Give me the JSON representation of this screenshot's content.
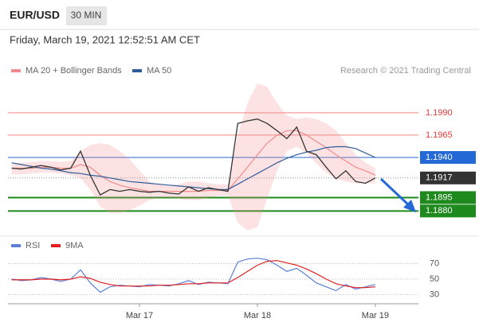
{
  "header": {
    "symbol": "EUR/USD",
    "timeframe": "30 MIN",
    "timestamp": "Friday, March 19, 2021 12:52:51 AM CET",
    "credit": "Research © 2021 Trading Central"
  },
  "chart_data": [
    {
      "type": "line",
      "ylim": [
        1.1858,
        1.203
      ],
      "price": {
        "color": "#333333",
        "values": [
          1.1928,
          1.1927,
          1.1929,
          1.1931,
          1.1929,
          1.1926,
          1.1928,
          1.1947,
          1.192,
          1.1898,
          1.1904,
          1.1902,
          1.1904,
          1.1902,
          1.1901,
          1.1902,
          1.19,
          1.1899,
          1.1907,
          1.1902,
          1.1906,
          1.1904,
          1.1902,
          1.1978,
          1.1981,
          1.1983,
          1.1978,
          1.197,
          1.1961,
          1.1974,
          1.1947,
          1.1943,
          1.1929,
          1.1916,
          1.1925,
          1.1913,
          1.1911,
          1.1917
        ]
      },
      "series": [
        {
          "name": "MA 20 + Bollinger Bands",
          "color": "#f28b8b",
          "values": [
            1.1928,
            1.1928,
            1.1928,
            1.1929,
            1.1929,
            1.1928,
            1.1928,
            1.1932,
            1.1929,
            1.192,
            1.1913,
            1.1909,
            1.1906,
            1.1904,
            1.1902,
            1.1902,
            1.1902,
            1.1902,
            1.1902,
            1.1902,
            1.1903,
            1.1903,
            1.1903,
            1.1916,
            1.1929,
            1.1943,
            1.1956,
            1.1965,
            1.197,
            1.197,
            1.1965,
            1.1958,
            1.1951,
            1.1943,
            1.1936,
            1.1929,
            1.1925,
            1.192
          ],
          "upper": [
            1.1934,
            1.1934,
            1.1935,
            1.1936,
            1.1936,
            1.1935,
            1.1936,
            1.1947,
            1.1954,
            1.1956,
            1.1954,
            1.1947,
            1.1938,
            1.1925,
            1.1913,
            1.191,
            1.1908,
            1.191,
            1.1913,
            1.1913,
            1.1911,
            1.191,
            1.191,
            1.1965,
            1.2001,
            1.2023,
            1.2019,
            1.2001,
            1.1987,
            1.1983,
            1.1985,
            1.1983,
            1.1978,
            1.197,
            1.1956,
            1.1943,
            1.1934,
            1.1928
          ],
          "lower": [
            1.1921,
            1.1921,
            1.1922,
            1.1923,
            1.1923,
            1.1922,
            1.192,
            1.1917,
            1.1904,
            1.1885,
            1.1878,
            1.1878,
            1.1881,
            1.1886,
            1.1892,
            1.1895,
            1.1895,
            1.1894,
            1.1892,
            1.1892,
            1.1895,
            1.1897,
            1.1897,
            1.1867,
            1.1858,
            1.1862,
            1.1894,
            1.1925,
            1.1947,
            1.1952,
            1.1945,
            1.1933,
            1.1923,
            1.1916,
            1.1913,
            1.1911,
            1.1911,
            1.1911
          ]
        },
        {
          "name": "MA 50",
          "color": "#2f5d9a",
          "values": [
            1.1934,
            1.1932,
            1.193,
            1.1928,
            1.1927,
            1.1925,
            1.1923,
            1.1922,
            1.192,
            1.1919,
            1.1917,
            1.1915,
            1.1913,
            1.1912,
            1.1911,
            1.191,
            1.1909,
            1.1908,
            1.1907,
            1.1906,
            1.1905,
            1.1904,
            1.1904,
            1.191,
            1.1916,
            1.1922,
            1.1928,
            1.1934,
            1.1939,
            1.1943,
            1.1946,
            1.1948,
            1.1951,
            1.1952,
            1.1952,
            1.195,
            1.1945,
            1.194
          ]
        }
      ],
      "levels": [
        {
          "value": 1.199,
          "label": "1.1990",
          "color": "#e53935",
          "boxed": false
        },
        {
          "value": 1.1965,
          "label": "1.1965",
          "color": "#e53935",
          "boxed": false
        },
        {
          "value": 1.194,
          "label": "1.1940",
          "color": "#2469d6",
          "boxed": true
        },
        {
          "value": 1.1917,
          "label": "1.1917",
          "color": "#333333",
          "boxed": true
        },
        {
          "value": 1.1895,
          "label": "1.1895",
          "color": "#1e8a1e",
          "boxed": true
        },
        {
          "value": 1.188,
          "label": "1.1880",
          "color": "#1e8a1e",
          "boxed": true
        }
      ]
    },
    {
      "type": "line",
      "ylim": [
        16,
        86
      ],
      "yticks": [
        70,
        50,
        30
      ],
      "grid": true,
      "categories": [
        null,
        null,
        null,
        null,
        null,
        null,
        null,
        null,
        null,
        null,
        null,
        null,
        null,
        "Mar 17",
        null,
        null,
        null,
        null,
        null,
        null,
        null,
        null,
        null,
        null,
        null,
        "Mar 18",
        null,
        null,
        null,
        null,
        null,
        null,
        null,
        null,
        null,
        null,
        null,
        "Mar 19"
      ],
      "series": [
        {
          "name": "RSI",
          "color": "#5b7fd6",
          "values": [
            50,
            48,
            49,
            52,
            50,
            47,
            50,
            62,
            45,
            33,
            40,
            42,
            41,
            40,
            43,
            42,
            41,
            44,
            48,
            43,
            46,
            45,
            44,
            72,
            76,
            77,
            75,
            68,
            60,
            64,
            55,
            45,
            40,
            35,
            43,
            37,
            40,
            43
          ]
        },
        {
          "name": "9MA",
          "color": "#e02020",
          "values": [
            49,
            49,
            49,
            50,
            50,
            49,
            50,
            53,
            51,
            46,
            43,
            41,
            41,
            41,
            41,
            42,
            42,
            43,
            44,
            44,
            45,
            45,
            45,
            52,
            60,
            68,
            73,
            74,
            71,
            68,
            63,
            57,
            50,
            44,
            41,
            39,
            39,
            40
          ]
        }
      ]
    }
  ]
}
